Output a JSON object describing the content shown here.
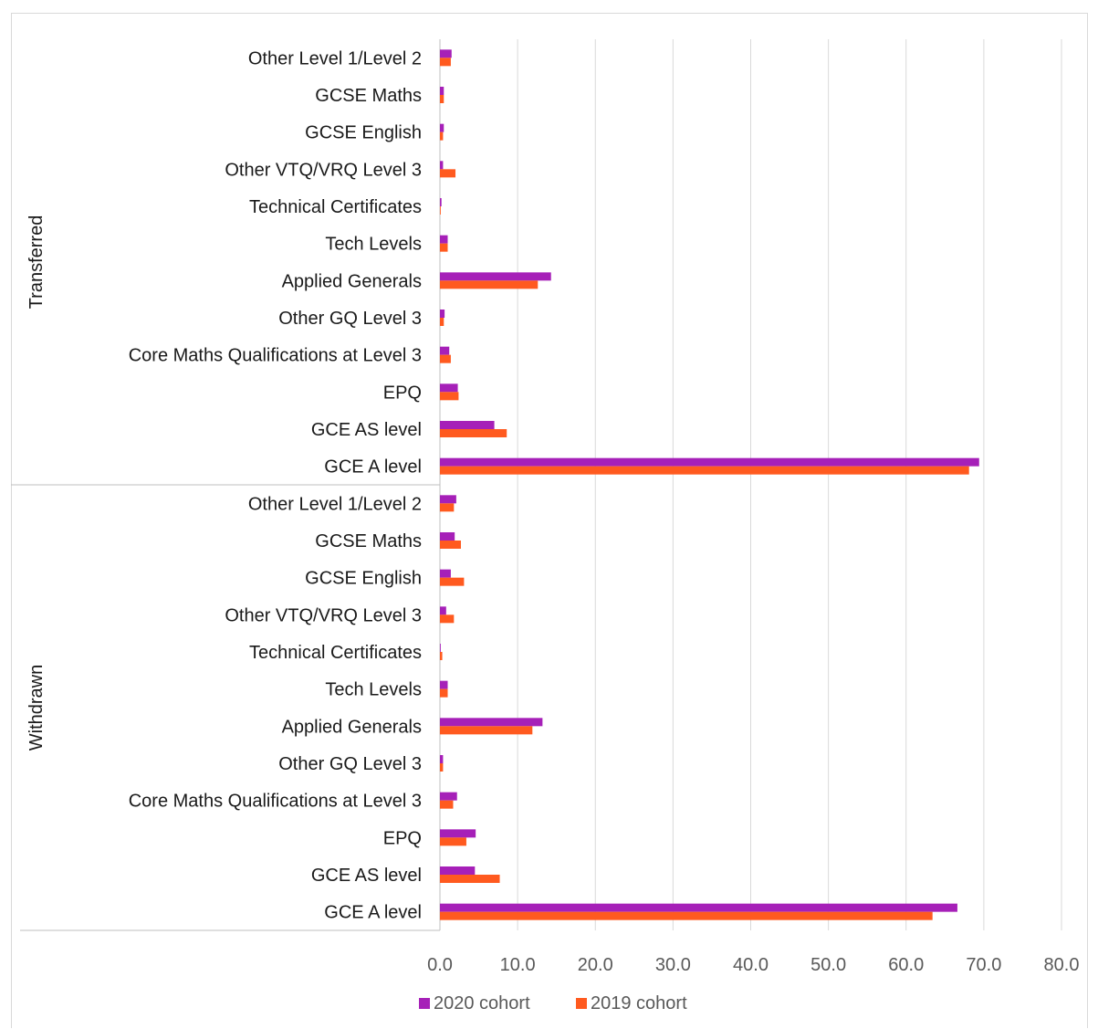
{
  "chart_data": {
    "type": "bar",
    "orientation": "horizontal",
    "title": "",
    "xlabel": "",
    "ylabel": "",
    "xlim": [
      0,
      80
    ],
    "xticks": [
      "0.0",
      "10.0",
      "20.0",
      "30.0",
      "40.0",
      "50.0",
      "60.0",
      "70.0",
      "80.0"
    ],
    "grid": true,
    "legend_position": "bottom",
    "legend": [
      {
        "name": "2020 cohort",
        "color": "#a620b8"
      },
      {
        "name": "2019 cohort",
        "color": "#ff5a1f"
      }
    ],
    "categories": [
      "Other Level 1/Level 2",
      "GCSE Maths",
      "GCSE English",
      "Other VTQ/VRQ Level 3",
      "Technical Certificates",
      "Tech Levels",
      "Applied Generals",
      "Other GQ Level 3",
      "Core Maths Qualifications at Level 3",
      "EPQ",
      "GCE AS level",
      "GCE A level"
    ],
    "groups": [
      {
        "name": "Transferred",
        "series": [
          {
            "name": "2020 cohort",
            "values": [
              1.5,
              0.5,
              0.5,
              0.4,
              0.2,
              1.0,
              14.3,
              0.6,
              1.2,
              2.3,
              7.0,
              69.4
            ]
          },
          {
            "name": "2019 cohort",
            "values": [
              1.4,
              0.5,
              0.4,
              2.0,
              0.1,
              1.0,
              12.6,
              0.5,
              1.4,
              2.4,
              8.6,
              68.1
            ]
          }
        ]
      },
      {
        "name": "Withdrawn",
        "series": [
          {
            "name": "2020 cohort",
            "values": [
              2.1,
              1.9,
              1.4,
              0.8,
              0.1,
              1.0,
              13.2,
              0.4,
              2.2,
              4.6,
              4.5,
              66.6
            ]
          },
          {
            "name": "2019 cohort",
            "values": [
              1.8,
              2.7,
              3.1,
              1.8,
              0.3,
              1.0,
              11.9,
              0.4,
              1.7,
              3.4,
              7.7,
              63.4
            ]
          }
        ]
      }
    ]
  }
}
